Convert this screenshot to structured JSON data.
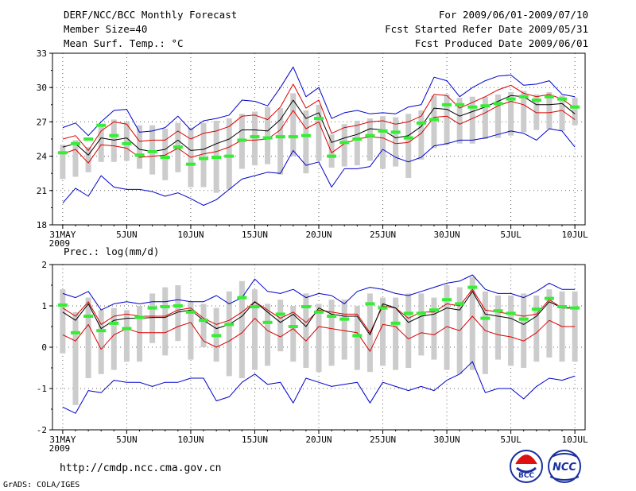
{
  "header": {
    "title": "DERF/NCC/BCC Monthly Forecast",
    "member_size": "Member Size=40",
    "variable": "Mean Surf. Temp.: °C",
    "period": "For 2009/06/01-2009/07/10",
    "started": "Fcst Started Refer Date 2009/05/31",
    "produced": "Fcst Produced Date 2009/06/01"
  },
  "footer": {
    "url": "http://cmdp.ncc.cma.gov.cn",
    "credit": "GrADS: COLA/IGES"
  },
  "logos": {
    "bcc": "BCC",
    "ncc": "NCC"
  },
  "chart_data": [
    {
      "type": "line",
      "title": "Mean Surf. Temp.: °C",
      "x_tick_labels": [
        "31MAY",
        "5JUN",
        "10JUN",
        "15JUN",
        "20JUN",
        "25JUN",
        "30JUN",
        "5JUL",
        "10JUL"
      ],
      "x_year_label": "2009",
      "x_days": 41,
      "ylim": [
        18,
        33
      ],
      "y_ticks": [
        18,
        21,
        24,
        27,
        30,
        33
      ],
      "colors": {
        "max_min": "#0000cc",
        "spread": "#dd0000",
        "mean": "#000000",
        "observed": "#33ee33",
        "range_bar": "#cccccc"
      },
      "series": [
        {
          "name": "max",
          "values": [
            26.5,
            26.9,
            25.8,
            27.0,
            28.0,
            28.1,
            26.1,
            26.2,
            26.5,
            27.5,
            26.3,
            27.1,
            27.3,
            27.6,
            28.9,
            28.8,
            28.4,
            30.0,
            31.8,
            29.2,
            30.0,
            27.3,
            27.8,
            28.0,
            27.7,
            27.8,
            27.7,
            28.3,
            28.5,
            30.9,
            30.6,
            29.2,
            30.0,
            30.6,
            31.0,
            31.1,
            30.2,
            30.3,
            30.6,
            29.4,
            29.2
          ]
        },
        {
          "name": "upper",
          "values": [
            25.5,
            25.8,
            24.5,
            26.2,
            27.0,
            26.8,
            25.3,
            25.4,
            25.4,
            26.2,
            25.5,
            26.0,
            26.2,
            26.6,
            27.5,
            27.6,
            27.2,
            28.3,
            30.3,
            28.2,
            28.9,
            26.0,
            26.5,
            26.7,
            27.0,
            27.1,
            26.8,
            27.0,
            27.5,
            29.4,
            29.3,
            28.2,
            28.7,
            29.2,
            29.8,
            30.2,
            29.5,
            29.2,
            29.4,
            29.0,
            28.2
          ]
        },
        {
          "name": "mean",
          "values": [
            24.8,
            25.1,
            24.1,
            25.6,
            25.4,
            25.6,
            24.6,
            24.4,
            24.6,
            25.4,
            24.5,
            24.6,
            25.1,
            25.5,
            26.3,
            26.3,
            26.2,
            27.2,
            28.9,
            27.3,
            27.8,
            25.2,
            25.6,
            25.9,
            26.4,
            26.3,
            25.6,
            25.8,
            26.6,
            28.2,
            28.1,
            27.5,
            27.9,
            28.3,
            28.8,
            29.3,
            29.2,
            28.5,
            28.5,
            28.6,
            27.7
          ]
        },
        {
          "name": "lower",
          "values": [
            24.2,
            24.6,
            23.4,
            25.0,
            24.9,
            24.7,
            23.9,
            24.0,
            24.1,
            24.7,
            23.9,
            24.2,
            24.4,
            24.8,
            25.4,
            25.4,
            25.5,
            26.3,
            28.0,
            26.4,
            27.0,
            24.3,
            25.1,
            25.5,
            25.7,
            25.6,
            25.1,
            25.2,
            26.0,
            27.4,
            27.5,
            26.8,
            27.3,
            27.8,
            28.4,
            28.8,
            28.5,
            27.8,
            27.8,
            28.0,
            27.2
          ]
        },
        {
          "name": "min",
          "values": [
            19.9,
            21.2,
            20.5,
            22.3,
            21.3,
            21.1,
            21.1,
            20.9,
            20.5,
            20.8,
            20.3,
            19.7,
            20.2,
            21.1,
            22.0,
            22.3,
            22.6,
            22.5,
            24.5,
            23.2,
            23.5,
            21.3,
            22.9,
            22.9,
            23.1,
            24.6,
            23.9,
            23.5,
            23.9,
            24.9,
            25.1,
            25.4,
            25.4,
            25.6,
            25.9,
            26.2,
            26.0,
            25.4,
            26.4,
            26.2,
            24.8
          ]
        },
        {
          "name": "observed",
          "values": [
            24.3,
            25.1,
            25.5,
            26.7,
            25.8,
            25.1,
            24.1,
            24.4,
            23.9,
            24.8,
            23.3,
            23.8,
            23.9,
            24.0,
            25.4,
            25.7,
            25.6,
            25.7,
            25.7,
            25.8,
            27.3,
            24.0,
            25.2,
            25.5,
            25.8,
            26.2,
            26.1,
            25.6,
            26.9,
            27.2,
            28.5,
            28.5,
            28.3,
            28.4,
            28.6,
            29.0,
            29.2,
            28.9,
            29.2,
            29.0,
            28.3
          ]
        },
        {
          "name": "range_low",
          "values": [
            22.0,
            22.2,
            22.6,
            23.5,
            23.5,
            23.6,
            22.9,
            22.4,
            21.9,
            22.6,
            21.3,
            21.3,
            20.8,
            21.1,
            22.9,
            23.2,
            23.3,
            22.4,
            24.0,
            22.5,
            23.6,
            23.0,
            23.1,
            23.2,
            23.6,
            22.9,
            23.1,
            22.1,
            23.7,
            24.7,
            25.0,
            25.1,
            25.1,
            25.5,
            25.6,
            25.8,
            26.1,
            26.3,
            26.4,
            26.2,
            26.7
          ]
        },
        {
          "name": "range_high",
          "values": [
            25.0,
            25.4,
            24.8,
            26.8,
            27.2,
            27.0,
            26.7,
            26.7,
            26.4,
            26.9,
            26.5,
            26.9,
            27.1,
            27.3,
            27.7,
            27.9,
            28.3,
            28.2,
            29.5,
            28.0,
            28.5,
            25.9,
            26.8,
            27.1,
            27.3,
            27.5,
            27.4,
            27.7,
            28.0,
            29.3,
            29.4,
            29.1,
            29.2,
            29.2,
            29.4,
            29.6,
            29.7,
            29.4,
            29.6,
            29.3,
            29.1
          ]
        }
      ]
    },
    {
      "type": "line",
      "title": "Prec.: log(mm/d)",
      "x_tick_labels": [
        "31MAY",
        "5JUN",
        "10JUN",
        "15JUN",
        "20JUN",
        "25JUN",
        "30JUN",
        "5JUL",
        "10JUL"
      ],
      "x_year_label": "2009",
      "x_days": 41,
      "ylim": [
        -2,
        2
      ],
      "y_ticks": [
        -2,
        -1,
        0,
        1,
        2
      ],
      "colors": {
        "max_min": "#0000cc",
        "spread": "#dd0000",
        "mean": "#000000",
        "observed": "#33ee33",
        "range_bar": "#cccccc"
      },
      "series": [
        {
          "name": "max",
          "values": [
            1.3,
            1.2,
            1.35,
            0.9,
            1.05,
            1.1,
            1.05,
            1.1,
            1.1,
            1.15,
            1.1,
            1.1,
            1.25,
            1.05,
            1.2,
            1.65,
            1.35,
            1.3,
            1.4,
            1.2,
            1.3,
            1.25,
            1.05,
            1.35,
            1.45,
            1.4,
            1.3,
            1.25,
            1.35,
            1.45,
            1.55,
            1.6,
            1.75,
            1.4,
            1.3,
            1.3,
            1.2,
            1.35,
            1.55,
            1.4,
            1.4
          ]
        },
        {
          "name": "upper",
          "values": [
            0.95,
            0.75,
            1.1,
            0.55,
            0.75,
            0.8,
            0.75,
            0.75,
            0.75,
            0.9,
            0.95,
            0.7,
            0.55,
            0.65,
            0.85,
            1.1,
            0.9,
            0.7,
            0.85,
            0.6,
            0.9,
            0.85,
            0.8,
            0.8,
            0.35,
            1.0,
            0.95,
            0.7,
            0.85,
            0.85,
            1.05,
            1.0,
            1.4,
            0.9,
            0.85,
            0.8,
            0.75,
            0.8,
            1.15,
            0.95,
            0.95
          ]
        },
        {
          "name": "mean",
          "values": [
            0.85,
            0.65,
            1.05,
            0.45,
            0.65,
            0.7,
            0.7,
            0.72,
            0.72,
            0.85,
            0.9,
            0.65,
            0.45,
            0.55,
            0.75,
            1.1,
            0.85,
            0.6,
            0.8,
            0.5,
            0.95,
            0.8,
            0.75,
            0.75,
            0.3,
            1.05,
            0.95,
            0.6,
            0.75,
            0.8,
            0.95,
            0.9,
            1.35,
            0.8,
            0.75,
            0.7,
            0.55,
            0.75,
            1.1,
            0.95,
            0.95
          ]
        },
        {
          "name": "lower",
          "values": [
            0.3,
            0.15,
            0.55,
            -0.05,
            0.3,
            0.45,
            0.35,
            0.35,
            0.35,
            0.5,
            0.6,
            0.15,
            0.0,
            0.15,
            0.35,
            0.7,
            0.4,
            0.25,
            0.45,
            0.15,
            0.5,
            0.45,
            0.4,
            0.35,
            -0.1,
            0.55,
            0.5,
            0.2,
            0.35,
            0.3,
            0.5,
            0.4,
            0.75,
            0.4,
            0.3,
            0.25,
            0.15,
            0.35,
            0.65,
            0.5,
            0.5
          ]
        },
        {
          "name": "min",
          "values": [
            -1.45,
            -1.6,
            -1.05,
            -1.1,
            -0.8,
            -0.85,
            -0.85,
            -0.95,
            -0.85,
            -0.85,
            -0.75,
            -0.75,
            -1.3,
            -1.2,
            -0.85,
            -0.65,
            -0.9,
            -0.85,
            -1.35,
            -0.75,
            -0.85,
            -0.95,
            -0.9,
            -0.85,
            -1.35,
            -0.85,
            -0.95,
            -1.05,
            -0.95,
            -1.05,
            -0.8,
            -0.65,
            -0.35,
            -1.1,
            -1.0,
            -1.0,
            -1.25,
            -0.95,
            -0.75,
            -0.8,
            -0.7
          ]
        },
        {
          "name": "observed",
          "values": [
            1.02,
            0.35,
            0.75,
            0.4,
            0.58,
            0.45,
            0.72,
            0.95,
            0.98,
            1.0,
            0.85,
            0.65,
            0.28,
            0.55,
            1.2,
            0.98,
            0.6,
            0.8,
            0.5,
            0.98,
            0.85,
            0.75,
            0.68,
            0.28,
            1.05,
            0.95,
            0.58,
            0.82,
            0.82,
            0.9,
            1.15,
            1.05,
            1.45,
            0.7,
            0.88,
            0.82,
            0.68,
            0.92,
            1.18,
            0.98,
            0.95
          ]
        },
        {
          "name": "range_low",
          "values": [
            -0.15,
            -1.4,
            -0.75,
            -0.65,
            -0.55,
            -0.35,
            -0.35,
            0.1,
            -0.2,
            0.15,
            -0.3,
            0.0,
            -0.35,
            -0.7,
            -0.75,
            -0.55,
            -0.45,
            -0.1,
            -0.35,
            -0.5,
            -0.6,
            -0.45,
            -0.3,
            -0.55,
            -0.6,
            -0.45,
            -0.55,
            -0.5,
            -0.2,
            -0.3,
            -0.55,
            -0.65,
            -0.55,
            -0.65,
            -0.3,
            -0.45,
            -0.5,
            -0.35,
            -0.25,
            -0.35,
            -0.35
          ]
        },
        {
          "name": "range_high",
          "values": [
            1.4,
            0.85,
            1.2,
            0.9,
            0.95,
            0.9,
            1.0,
            1.3,
            1.45,
            1.5,
            1.1,
            1.05,
            0.95,
            1.35,
            1.6,
            1.4,
            1.05,
            1.15,
            1.0,
            1.3,
            1.05,
            1.15,
            1.15,
            1.0,
            1.3,
            1.2,
            1.2,
            1.3,
            1.3,
            1.2,
            1.5,
            1.45,
            1.7,
            1.35,
            1.25,
            1.25,
            1.3,
            1.25,
            1.4,
            1.35,
            1.35
          ]
        }
      ]
    }
  ]
}
